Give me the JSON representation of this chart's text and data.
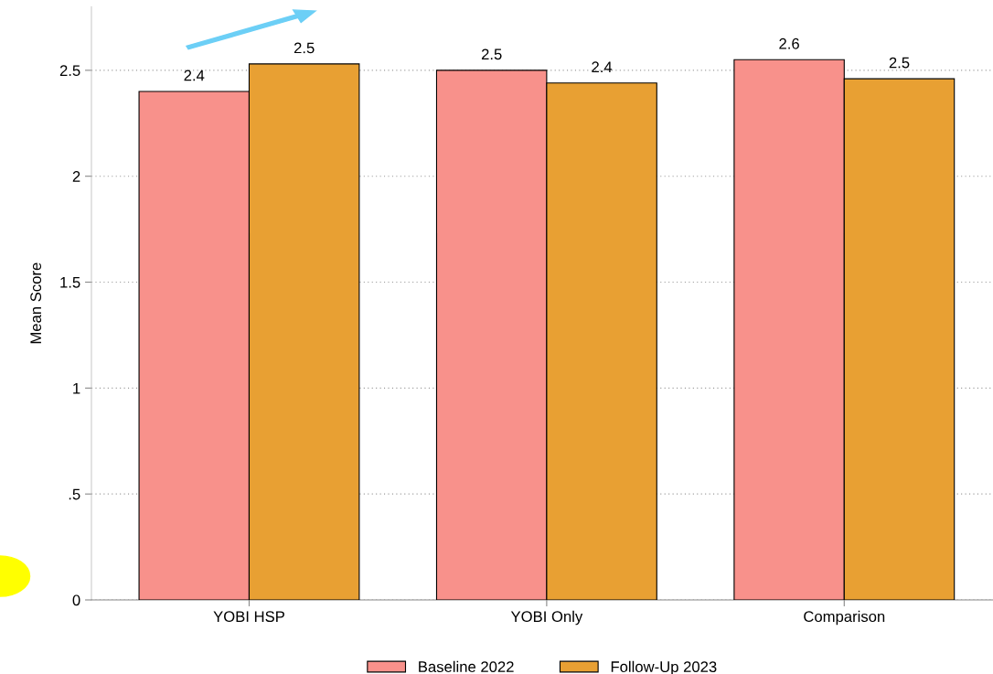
{
  "chart_data": {
    "type": "bar",
    "ylabel": "Mean Score",
    "categories": [
      "YOBI HSP",
      "YOBI Only",
      "Comparison"
    ],
    "series": [
      {
        "name": "Baseline 2022",
        "color": "#f8918b",
        "values": [
          2.4,
          2.5,
          2.55
        ],
        "value_labels": [
          "2.4",
          "2.5",
          "2.6"
        ]
      },
      {
        "name": "Follow-Up 2023",
        "color": "#e8a033",
        "values": [
          2.53,
          2.44,
          2.46
        ],
        "value_labels": [
          "2.5",
          "2.4",
          "2.5"
        ]
      }
    ],
    "ylim": [
      0,
      2.8
    ],
    "yticks": [
      0,
      {
        "value": 0.5,
        "label": ".5"
      },
      1,
      1.5,
      2,
      2.5
    ],
    "grid": "y",
    "legend": "bottom"
  }
}
